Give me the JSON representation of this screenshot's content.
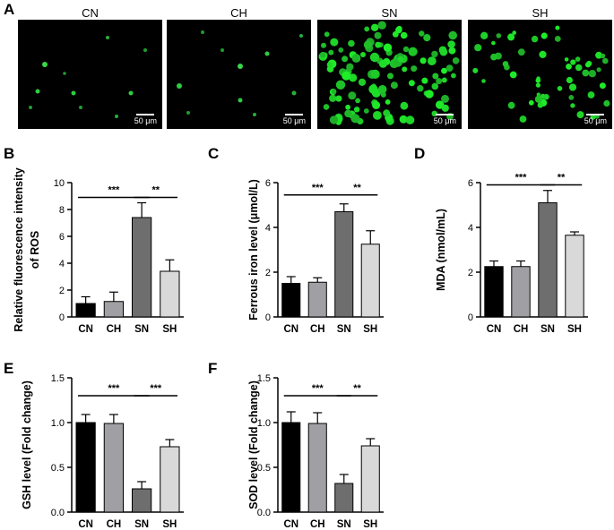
{
  "panel_a": {
    "letter": "A",
    "groups": [
      "CN",
      "CH",
      "SN",
      "SH"
    ],
    "scale_bar": "50 μm"
  },
  "chart_data": [
    {
      "id": "B",
      "type": "bar",
      "categories": [
        "CN",
        "CH",
        "SN",
        "SH"
      ],
      "values": [
        1.0,
        1.15,
        7.4,
        3.4
      ],
      "errors": [
        0.5,
        0.7,
        1.1,
        0.85
      ],
      "ylabel": "Relative fluorescence intensity of ROS",
      "ylabel_lines": [
        "Relative fluorescence intensity",
        "of ROS"
      ],
      "ylim": [
        0,
        10
      ],
      "yticks": [
        "0",
        "2",
        "4",
        "6",
        "8",
        "10"
      ],
      "yticks_values": [
        0,
        2,
        4,
        6,
        8,
        10
      ],
      "colors": [
        "#000000",
        "#a0a0a4",
        "#6e6e6e",
        "#d9d9d9"
      ],
      "significance": [
        {
          "from": "CN",
          "to": "SN",
          "label": "***",
          "y": 8.9
        },
        {
          "from": "SN",
          "to": "SH",
          "label": "**",
          "y": 8.9
        }
      ]
    },
    {
      "id": "C",
      "type": "bar",
      "categories": [
        "CN",
        "CH",
        "SN",
        "SH"
      ],
      "values": [
        1.5,
        1.55,
        4.7,
        3.25
      ],
      "errors": [
        0.3,
        0.2,
        0.35,
        0.6
      ],
      "ylabel": "Ferrous iron level (μmol/L)",
      "ylabel_lines": [
        "Ferrous iron level (μmol/L)"
      ],
      "ylim": [
        0,
        6
      ],
      "yticks": [
        "0",
        "2",
        "4",
        "6"
      ],
      "yticks_values": [
        0,
        2,
        4,
        6
      ],
      "colors": [
        "#000000",
        "#a0a0a4",
        "#6e6e6e",
        "#d9d9d9"
      ],
      "significance": [
        {
          "from": "CN",
          "to": "SN",
          "label": "***",
          "y": 5.45
        },
        {
          "from": "SN",
          "to": "SH",
          "label": "**",
          "y": 5.45
        }
      ]
    },
    {
      "id": "D",
      "type": "bar",
      "categories": [
        "CN",
        "CH",
        "SN",
        "SH"
      ],
      "values": [
        2.25,
        2.25,
        5.1,
        3.65
      ],
      "errors": [
        0.25,
        0.25,
        0.55,
        0.15
      ],
      "ylabel": "MDA (nmol/mL)",
      "ylabel_lines": [
        "MDA (nmol/mL)"
      ],
      "ylim": [
        0,
        6
      ],
      "yticks": [
        "0",
        "2",
        "4",
        "6"
      ],
      "yticks_values": [
        0,
        2,
        4,
        6
      ],
      "colors": [
        "#000000",
        "#a0a0a4",
        "#6e6e6e",
        "#d9d9d9"
      ],
      "significance": [
        {
          "from": "CN",
          "to": "SN",
          "label": "***",
          "y": 5.9
        },
        {
          "from": "SN",
          "to": "SH",
          "label": "**",
          "y": 5.9
        }
      ]
    },
    {
      "id": "E",
      "type": "bar",
      "categories": [
        "CN",
        "CH",
        "SN",
        "SH"
      ],
      "values": [
        1.0,
        0.99,
        0.26,
        0.73
      ],
      "errors": [
        0.09,
        0.1,
        0.08,
        0.08
      ],
      "ylabel": "GSH level (Fold change)",
      "ylabel_lines": [
        "GSH level (Fold change)"
      ],
      "ylim": [
        0,
        1.5
      ],
      "yticks": [
        "0.0",
        "0.5",
        "1.0",
        "1.5"
      ],
      "yticks_values": [
        0,
        0.5,
        1.0,
        1.5
      ],
      "colors": [
        "#000000",
        "#a0a0a4",
        "#6e6e6e",
        "#d9d9d9"
      ],
      "significance": [
        {
          "from": "CN",
          "to": "SN",
          "label": "***",
          "y": 1.3
        },
        {
          "from": "SN",
          "to": "SH",
          "label": "***",
          "y": 1.3
        }
      ]
    },
    {
      "id": "F",
      "type": "bar",
      "categories": [
        "CN",
        "CH",
        "SN",
        "SH"
      ],
      "values": [
        1.0,
        0.99,
        0.32,
        0.74
      ],
      "errors": [
        0.12,
        0.12,
        0.1,
        0.08
      ],
      "ylabel": "SOD level (Fold change)",
      "ylabel_lines": [
        "SOD level (Fold change)"
      ],
      "ylim": [
        0,
        1.5
      ],
      "yticks": [
        "0.0",
        "0.5",
        "1.0",
        "1.5"
      ],
      "yticks_values": [
        0,
        0.5,
        1.0,
        1.5
      ],
      "colors": [
        "#000000",
        "#a0a0a4",
        "#6e6e6e",
        "#d9d9d9"
      ],
      "significance": [
        {
          "from": "CN",
          "to": "SN",
          "label": "***",
          "y": 1.3
        },
        {
          "from": "SN",
          "to": "SH",
          "label": "**",
          "y": 1.3
        }
      ]
    }
  ]
}
